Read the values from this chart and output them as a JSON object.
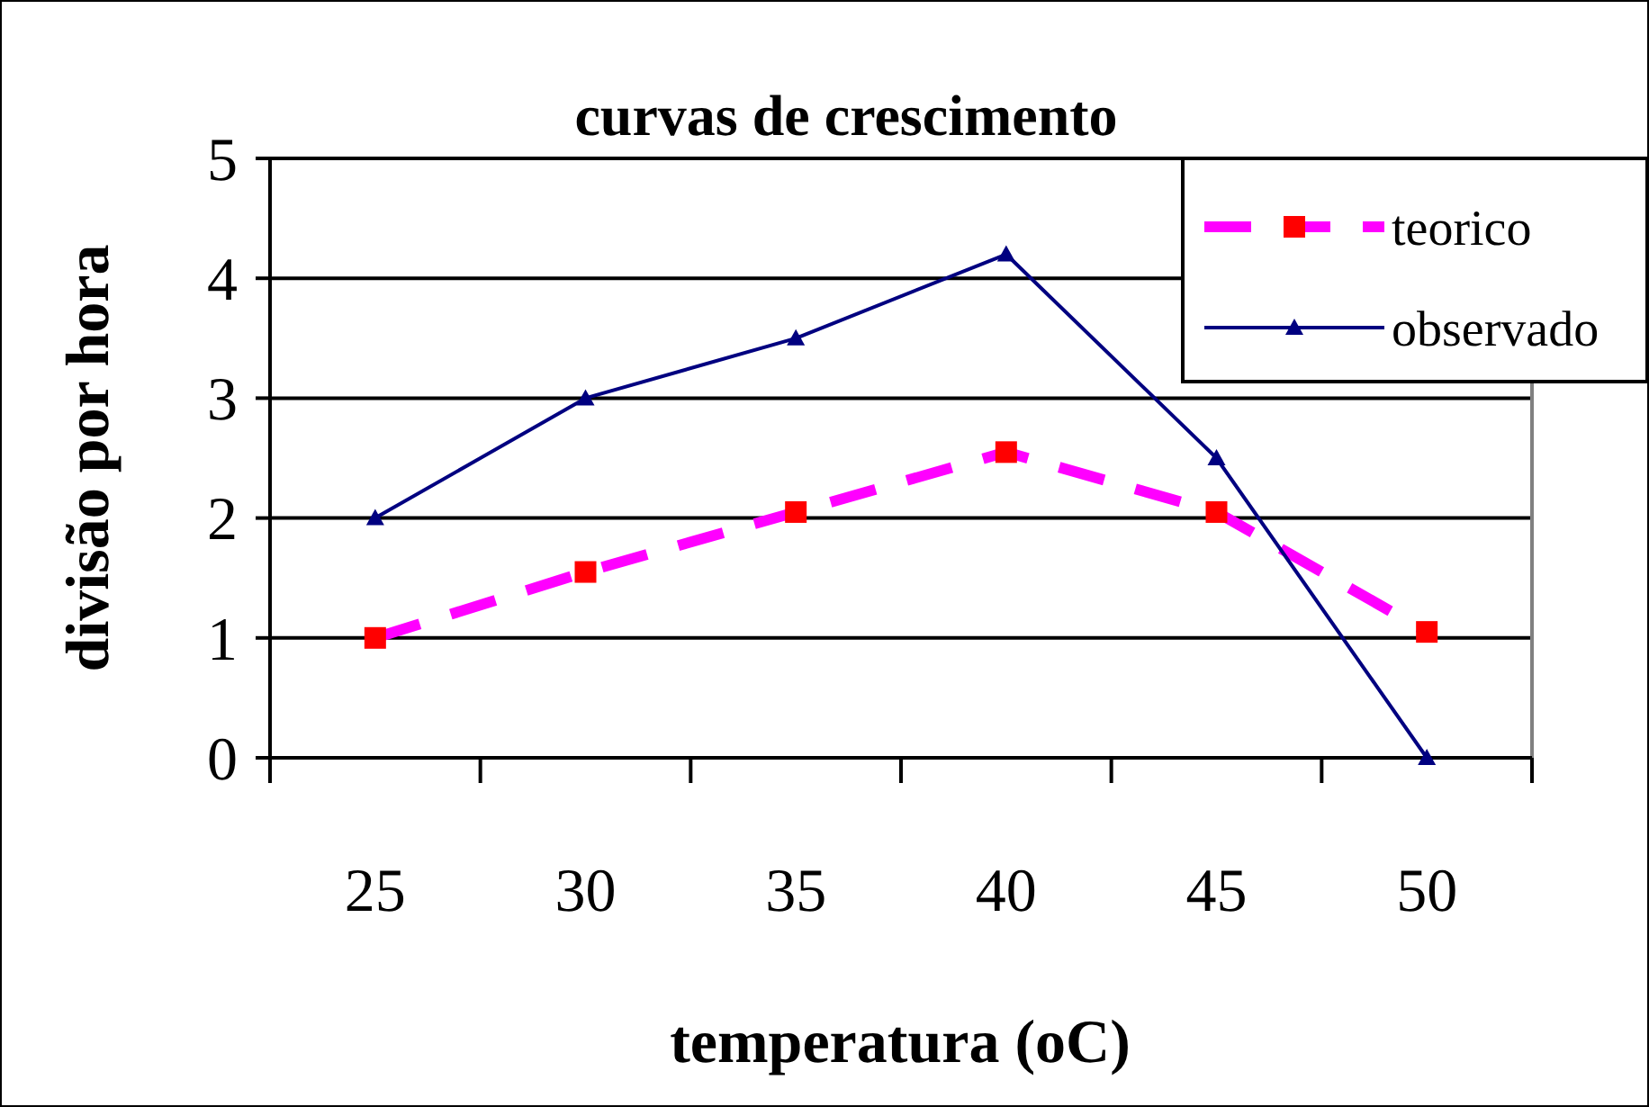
{
  "chart_data": {
    "type": "line",
    "title": "curvas de crescimento",
    "xlabel": "temperatura (oC)",
    "ylabel": "divisão por hora",
    "categories": [
      "25",
      "30",
      "35",
      "40",
      "45",
      "50"
    ],
    "series": [
      {
        "name": "teorico",
        "color": "#ff00ff",
        "values": [
          1,
          1.55,
          2.05,
          2.55,
          2.05,
          1.05
        ],
        "marker": "square",
        "line_style": "dashed"
      },
      {
        "name": "observado",
        "color": "#000080",
        "values": [
          2,
          3,
          3.5,
          4.2,
          2.5,
          0
        ],
        "marker": "triangle",
        "line_style": "solid"
      }
    ],
    "ylim": [
      0,
      5
    ],
    "yticks": [
      0,
      1,
      2,
      3,
      4,
      5
    ],
    "grid": "y",
    "legend": "top right"
  }
}
